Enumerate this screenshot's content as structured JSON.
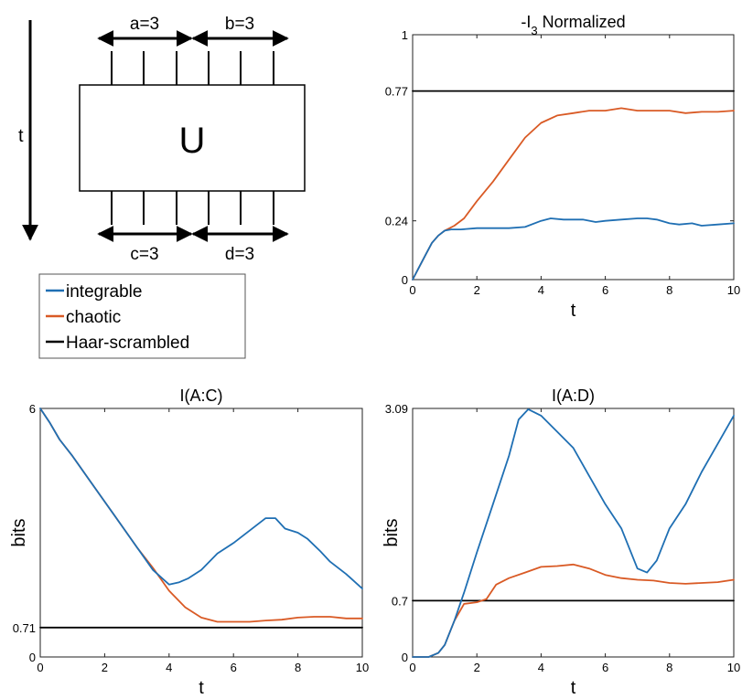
{
  "diagram": {
    "time_label": "t",
    "unitary_label": "U",
    "a_label": "a=3",
    "b_label": "b=3",
    "c_label": "c=3",
    "d_label": "d=3"
  },
  "legend": {
    "placement": "middle-left",
    "entries": [
      {
        "label": "integrable",
        "color": "#1f6fb3"
      },
      {
        "label": "chaotic",
        "color": "#d95a25"
      },
      {
        "label": "Haar-scrambled",
        "color": "#000000"
      }
    ]
  },
  "chart_data": [
    {
      "type": "line",
      "title": "-I",
      "title_sub": "3",
      "title_rest": " Normalized",
      "xlabel": "t",
      "ylabel": "",
      "xlim": [
        0,
        10
      ],
      "ylim": [
        0,
        1
      ],
      "xticks": [
        0,
        2,
        4,
        6,
        8,
        10
      ],
      "yticks": [
        0,
        0.24,
        0.77,
        1
      ],
      "ytick_labels": [
        "0",
        "0.24",
        "0.77",
        "1"
      ],
      "grid": false,
      "series": [
        {
          "name": "integrable",
          "color": "#1f6fb3",
          "x": [
            0,
            0.2,
            0.4,
            0.6,
            0.8,
            1.0,
            1.2,
            1.5,
            2.0,
            2.5,
            3.0,
            3.5,
            4.0,
            4.3,
            4.7,
            5.0,
            5.3,
            5.7,
            6.0,
            6.5,
            7.0,
            7.3,
            7.6,
            8.0,
            8.3,
            8.7,
            9.0,
            9.5,
            10
          ],
          "y": [
            0,
            0.05,
            0.1,
            0.15,
            0.18,
            0.2,
            0.205,
            0.205,
            0.21,
            0.21,
            0.21,
            0.215,
            0.24,
            0.25,
            0.245,
            0.245,
            0.245,
            0.235,
            0.24,
            0.245,
            0.25,
            0.25,
            0.245,
            0.23,
            0.225,
            0.23,
            0.22,
            0.225,
            0.23
          ]
        },
        {
          "name": "chaotic",
          "color": "#d95a25",
          "x": [
            0,
            0.2,
            0.4,
            0.6,
            0.8,
            1.0,
            1.3,
            1.6,
            2.0,
            2.5,
            3.0,
            3.5,
            4.0,
            4.5,
            5.0,
            5.5,
            6.0,
            6.5,
            7.0,
            7.5,
            8.0,
            8.5,
            9.0,
            9.5,
            10
          ],
          "y": [
            0,
            0.05,
            0.1,
            0.15,
            0.18,
            0.2,
            0.22,
            0.25,
            0.32,
            0.4,
            0.49,
            0.58,
            0.64,
            0.67,
            0.68,
            0.69,
            0.69,
            0.7,
            0.69,
            0.69,
            0.69,
            0.68,
            0.685,
            0.685,
            0.69
          ]
        },
        {
          "name": "Haar-scrambled",
          "color": "#000000",
          "x": [
            0,
            10
          ],
          "y": [
            0.77,
            0.77
          ]
        }
      ]
    },
    {
      "type": "line",
      "title": "I(A:C)",
      "xlabel": "t",
      "ylabel": "bits",
      "xlim": [
        0,
        10
      ],
      "ylim": [
        0,
        6
      ],
      "xticks": [
        0,
        2,
        4,
        6,
        8,
        10
      ],
      "yticks": [
        0,
        0.71,
        6
      ],
      "ytick_labels": [
        "0",
        "0.71",
        "6"
      ],
      "grid": false,
      "series": [
        {
          "name": "integrable",
          "color": "#1f6fb3",
          "x": [
            0,
            0.3,
            0.6,
            1.0,
            1.5,
            2.0,
            2.5,
            3.0,
            3.5,
            4.0,
            4.3,
            4.6,
            5.0,
            5.5,
            6.0,
            6.5,
            7.0,
            7.3,
            7.6,
            8.0,
            8.3,
            8.7,
            9.0,
            9.5,
            10
          ],
          "y": [
            6,
            5.65,
            5.25,
            4.85,
            4.3,
            3.75,
            3.2,
            2.65,
            2.1,
            1.75,
            1.8,
            1.9,
            2.1,
            2.5,
            2.75,
            3.05,
            3.35,
            3.35,
            3.1,
            3.0,
            2.85,
            2.55,
            2.3,
            2.0,
            1.65
          ]
        },
        {
          "name": "chaotic",
          "color": "#d95a25",
          "x": [
            0,
            0.3,
            0.6,
            1.0,
            1.5,
            2.0,
            2.5,
            3.0,
            3.5,
            4.0,
            4.5,
            5.0,
            5.5,
            6.0,
            6.5,
            7.0,
            7.5,
            8.0,
            8.5,
            9.0,
            9.5,
            10
          ],
          "y": [
            6,
            5.65,
            5.25,
            4.85,
            4.3,
            3.75,
            3.2,
            2.65,
            2.15,
            1.6,
            1.2,
            0.95,
            0.85,
            0.85,
            0.85,
            0.88,
            0.9,
            0.95,
            0.97,
            0.97,
            0.93,
            0.93
          ]
        },
        {
          "name": "Haar-scrambled",
          "color": "#000000",
          "x": [
            0,
            10
          ],
          "y": [
            0.71,
            0.71
          ]
        }
      ]
    },
    {
      "type": "line",
      "title": "I(A:D)",
      "xlabel": "t",
      "ylabel": "bits",
      "xlim": [
        0,
        10
      ],
      "ylim": [
        0,
        3.09
      ],
      "xticks": [
        0,
        2,
        4,
        6,
        8,
        10
      ],
      "yticks": [
        0,
        0.7,
        3.09
      ],
      "ytick_labels": [
        "0",
        "0.7",
        "3.09"
      ],
      "grid": false,
      "series": [
        {
          "name": "integrable",
          "color": "#1f6fb3",
          "x": [
            0,
            0.5,
            0.8,
            1.0,
            1.3,
            1.6,
            2.0,
            2.5,
            3.0,
            3.3,
            3.6,
            4.0,
            4.5,
            5.0,
            5.5,
            6.0,
            6.5,
            7.0,
            7.3,
            7.6,
            8.0,
            8.5,
            9.0,
            9.5,
            10
          ],
          "y": [
            0,
            0,
            0.05,
            0.15,
            0.45,
            0.8,
            1.3,
            1.9,
            2.5,
            2.95,
            3.08,
            3.0,
            2.8,
            2.6,
            2.25,
            1.9,
            1.6,
            1.1,
            1.05,
            1.2,
            1.6,
            1.9,
            2.3,
            2.65,
            3.0
          ]
        },
        {
          "name": "chaotic",
          "color": "#d95a25",
          "x": [
            0,
            0.5,
            0.8,
            1.0,
            1.3,
            1.6,
            2.0,
            2.3,
            2.6,
            3.0,
            3.5,
            4.0,
            4.5,
            5.0,
            5.5,
            6.0,
            6.5,
            7.0,
            7.5,
            8.0,
            8.5,
            9.0,
            9.5,
            10
          ],
          "y": [
            0,
            0,
            0.05,
            0.15,
            0.45,
            0.66,
            0.68,
            0.72,
            0.9,
            0.98,
            1.05,
            1.12,
            1.13,
            1.15,
            1.1,
            1.02,
            0.98,
            0.96,
            0.95,
            0.92,
            0.91,
            0.92,
            0.93,
            0.96
          ]
        },
        {
          "name": "Haar-scrambled",
          "color": "#000000",
          "x": [
            0,
            10
          ],
          "y": [
            0.7,
            0.7
          ]
        }
      ]
    }
  ]
}
